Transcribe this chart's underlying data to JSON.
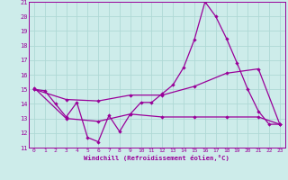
{
  "xlabel": "Windchill (Refroidissement éolien,°C)",
  "background_color": "#cdecea",
  "grid_color": "#afd8d5",
  "line_color": "#990099",
  "xlim": [
    -0.5,
    23.5
  ],
  "ylim": [
    11,
    21
  ],
  "yticks": [
    11,
    12,
    13,
    14,
    15,
    16,
    17,
    18,
    19,
    20,
    21
  ],
  "xticks": [
    0,
    1,
    2,
    3,
    4,
    5,
    6,
    7,
    8,
    9,
    10,
    11,
    12,
    13,
    14,
    15,
    16,
    17,
    18,
    19,
    20,
    21,
    22,
    23
  ],
  "series1_x": [
    0,
    1,
    2,
    3,
    4,
    5,
    6,
    7,
    8,
    9,
    10,
    11,
    12,
    13,
    14,
    15,
    16,
    17,
    18,
    19,
    20,
    21,
    22,
    23
  ],
  "series1_y": [
    15.0,
    14.9,
    14.0,
    13.1,
    14.1,
    11.7,
    11.4,
    13.2,
    12.1,
    13.3,
    14.1,
    14.1,
    14.7,
    15.3,
    16.5,
    18.4,
    21.0,
    20.0,
    18.5,
    16.8,
    15.0,
    13.5,
    12.6,
    12.6
  ],
  "series2_x": [
    0,
    3,
    6,
    9,
    12,
    15,
    18,
    21,
    23
  ],
  "series2_y": [
    15.0,
    14.3,
    14.2,
    14.6,
    14.6,
    15.2,
    16.1,
    16.4,
    12.6
  ],
  "series3_x": [
    0,
    3,
    6,
    9,
    12,
    15,
    18,
    21,
    23
  ],
  "series3_y": [
    15.1,
    13.0,
    12.8,
    13.3,
    13.1,
    13.1,
    13.1,
    13.1,
    12.6
  ]
}
